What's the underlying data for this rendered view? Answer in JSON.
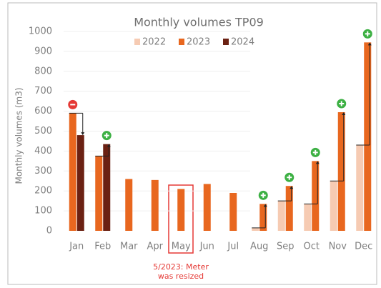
{
  "chart_data": {
    "type": "bar",
    "title": "Monthly volumes TP09",
    "y_label": "Monthly volumes (m3)",
    "categories": [
      "Jan",
      "Feb",
      "Mar",
      "Apr",
      "May",
      "Jun",
      "Jul",
      "Aug",
      "Sep",
      "Oct",
      "Nov",
      "Dec"
    ],
    "series": [
      {
        "name": "2022",
        "color": "#f6cbb3",
        "values": [
          null,
          null,
          null,
          null,
          null,
          null,
          null,
          15,
          150,
          135,
          250,
          430
        ]
      },
      {
        "name": "2023",
        "color": "#e8671f",
        "values": [
          590,
          375,
          260,
          255,
          210,
          235,
          190,
          135,
          225,
          350,
          595,
          945
        ]
      },
      {
        "name": "2024",
        "color": "#6b2113",
        "values": [
          480,
          435,
          null,
          null,
          null,
          null,
          null,
          null,
          null,
          null,
          null,
          null
        ]
      }
    ],
    "ylim": [
      0,
      1000
    ],
    "yticks": [
      0,
      100,
      200,
      300,
      400,
      500,
      600,
      700,
      800,
      900,
      1000
    ],
    "grid": true,
    "annotation": [
      "5/2023: Meter",
      "was resized"
    ]
  }
}
